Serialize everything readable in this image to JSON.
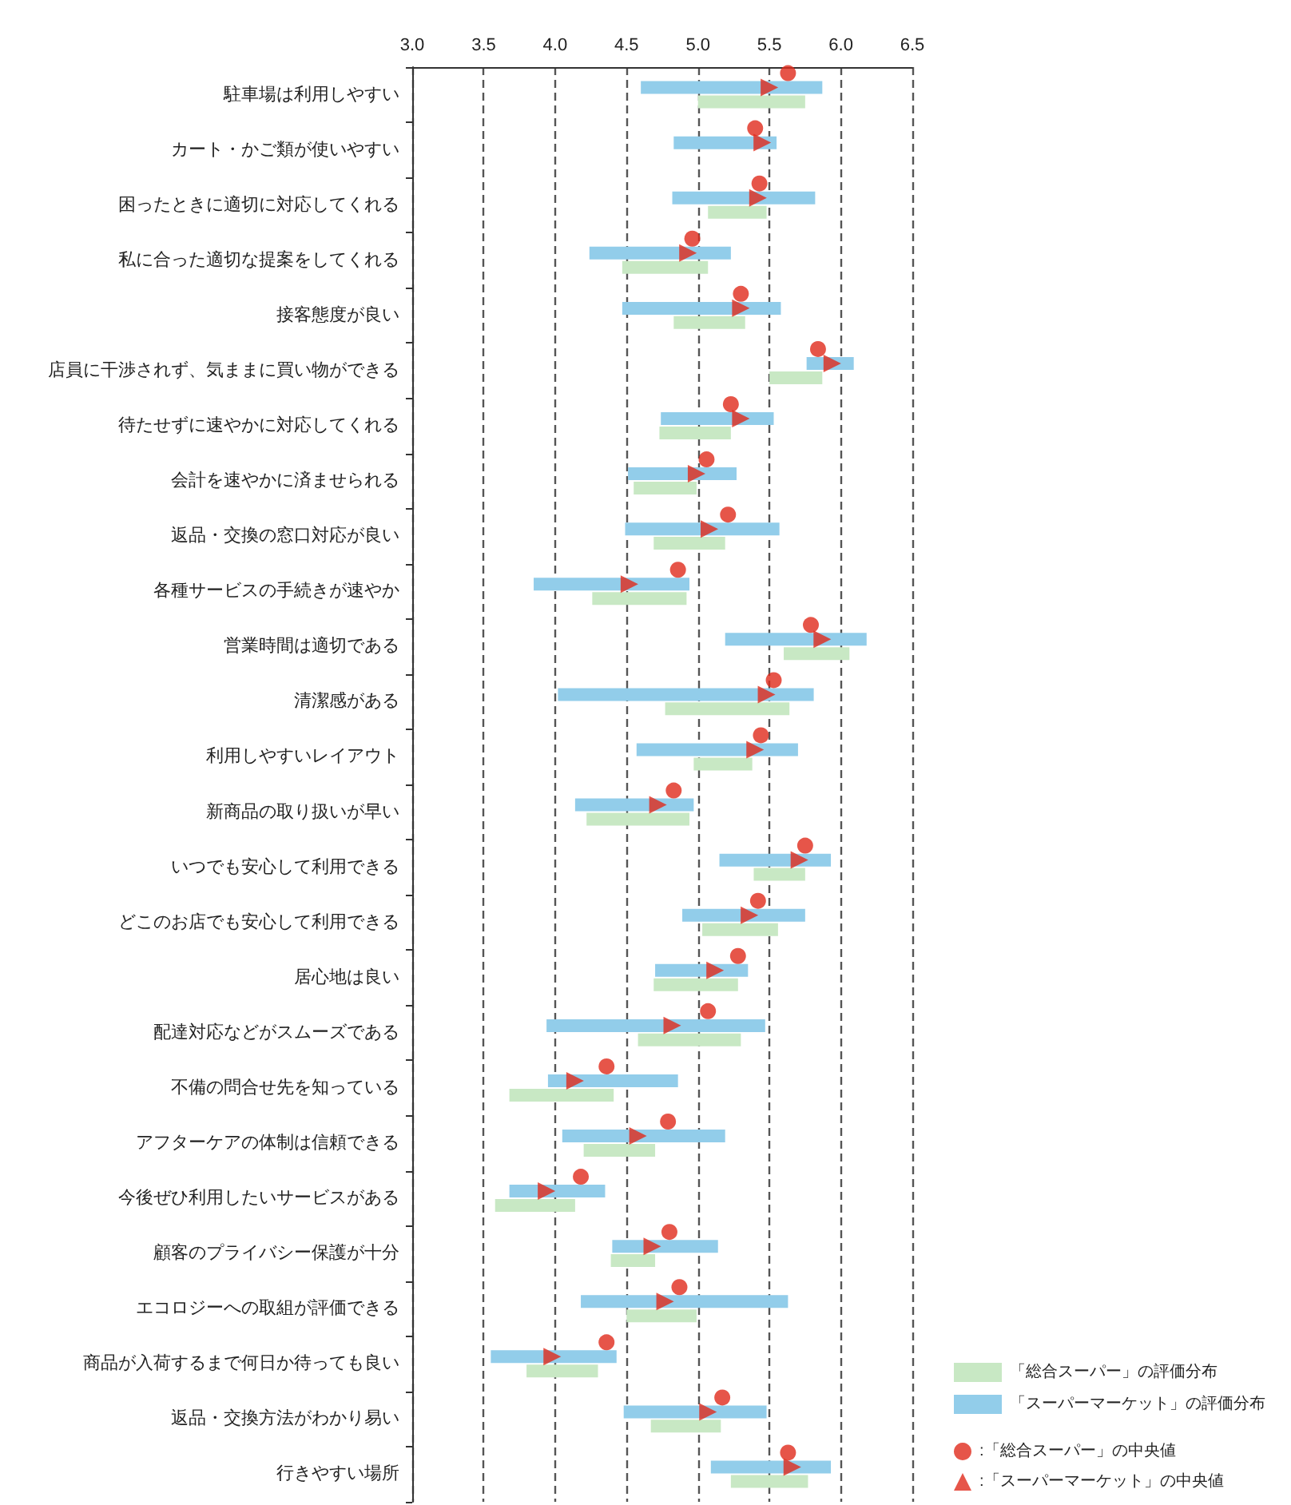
{
  "chart_data": {
    "type": "bar",
    "orientation": "horizontal",
    "categories": [
      "駐車場は利用しやすい",
      "カート・かご類が使いやすい",
      "困ったときに適切に対応してくれる",
      "私に合った適切な提案をしてくれる",
      "接客態度が良い",
      "店員に干渉されず、気ままに買い物ができる",
      "待たせずに速やかに対応してくれる",
      "会計を速やかに済ませられる",
      "返品・交換の窓口対応が良い",
      "各種サービスの手続きが速やか",
      "営業時間は適切である",
      "清潔感がある",
      "利用しやすいレイアウト",
      "新商品の取り扱いが早い",
      "いつでも安心して利用できる",
      "どこのお店でも安心して利用できる",
      "居心地は良い",
      "配達対応などがスムーズである",
      "不備の問合せ先を知っている",
      "アフターケアの体制は信頼できる",
      "今後ぜひ利用したいサービスがある",
      "顧客のプライバシー保護が十分",
      "エコロジーへの取組が評価できる",
      "商品が入荷するまで何日か待っても良い",
      "返品・交換方法がわかり易い",
      "行きやすい場所"
    ],
    "series": [
      {
        "name": "「総合スーパー」の評価分布",
        "color": "#c8e8c4",
        "base": [
          5.0,
          null,
          5.07,
          4.47,
          4.83,
          5.5,
          4.73,
          4.55,
          4.69,
          4.26,
          5.6,
          4.77,
          4.97,
          4.22,
          5.39,
          5.03,
          4.69,
          4.58,
          3.68,
          4.2,
          3.58,
          4.39,
          4.5,
          3.8,
          4.67,
          5.23
        ],
        "values": [
          0.75,
          null,
          0.41,
          0.6,
          0.5,
          0.37,
          0.5,
          0.44,
          0.5,
          0.66,
          0.46,
          0.87,
          0.41,
          0.72,
          0.36,
          0.53,
          0.59,
          0.72,
          0.73,
          0.5,
          0.56,
          0.31,
          0.49,
          0.5,
          0.49,
          0.54
        ]
      },
      {
        "name": "「スーパーマーケット」の評価分布",
        "color": "#92cdea",
        "base": [
          4.6,
          4.83,
          4.82,
          4.24,
          4.47,
          5.76,
          4.74,
          4.51,
          4.49,
          3.85,
          5.19,
          4.02,
          4.57,
          4.14,
          5.15,
          4.89,
          4.7,
          3.94,
          3.95,
          4.05,
          3.68,
          4.4,
          4.18,
          3.55,
          4.48,
          5.09
        ],
        "values": [
          1.27,
          0.72,
          1.0,
          0.99,
          1.11,
          0.33,
          0.79,
          0.76,
          1.08,
          1.09,
          0.99,
          1.79,
          1.13,
          0.83,
          0.78,
          0.86,
          0.65,
          1.53,
          0.91,
          1.14,
          0.67,
          0.74,
          1.45,
          0.88,
          1.0,
          0.84
        ]
      },
      {
        "type": "scatter",
        "name": ":「総合スーパー」の中央値",
        "color": "#e02a1c",
        "marker": "circle",
        "values": [
          5.63,
          5.4,
          5.43,
          4.96,
          5.3,
          5.84,
          5.23,
          5.06,
          5.21,
          4.86,
          5.79,
          5.53,
          5.44,
          4.83,
          5.75,
          5.42,
          5.28,
          5.07,
          4.36,
          4.79,
          4.18,
          4.8,
          4.87,
          4.36,
          5.17,
          5.63
        ]
      },
      {
        "type": "scatter",
        "name": ":「スーパーマーケット」の中央値",
        "color": "#e02a1c",
        "marker": "triangle",
        "values": [
          5.5,
          5.45,
          5.42,
          4.93,
          5.3,
          5.94,
          5.3,
          4.99,
          5.08,
          4.52,
          5.87,
          5.48,
          5.4,
          4.72,
          5.71,
          5.36,
          5.12,
          4.82,
          4.14,
          4.58,
          3.94,
          4.68,
          4.77,
          3.98,
          5.07,
          5.66
        ]
      }
    ],
    "xlim": [
      3.0,
      6.5
    ],
    "xticks": [
      {
        "value": 3.0,
        "label": "3.0"
      },
      {
        "value": 3.5,
        "label": "3.5"
      },
      {
        "value": 4.0,
        "label": "4.0"
      },
      {
        "value": 4.5,
        "label": "4.5"
      },
      {
        "value": 5.0,
        "label": "5.0"
      },
      {
        "value": 5.5,
        "label": "5.5"
      },
      {
        "value": 6.0,
        "label": "6.0"
      },
      {
        "value": 6.5,
        "label": "6.5"
      }
    ],
    "grid": "x",
    "legend": "bottom right"
  }
}
